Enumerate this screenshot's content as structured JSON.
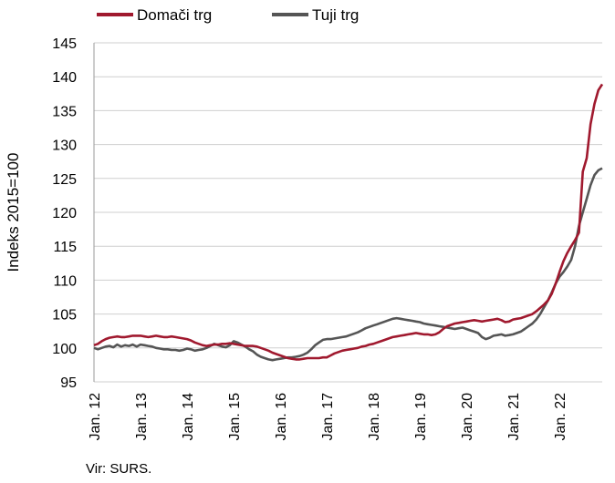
{
  "chart_data": {
    "type": "line",
    "title": "",
    "xlabel": "",
    "ylabel": "Indeks 2015=100",
    "ylim": [
      95,
      145
    ],
    "yticks": [
      95,
      100,
      105,
      110,
      115,
      120,
      125,
      130,
      135,
      140,
      145
    ],
    "x_tick_labels": [
      "Jan. 12",
      "Jan. 13",
      "Jan. 14",
      "Jan. 15",
      "Jan. 16",
      "Jan. 17",
      "Jan. 18",
      "Jan. 19",
      "Jan. 20",
      "Jan. 21",
      "Jan. 22"
    ],
    "x_range": [
      "2012-01",
      "2022-06"
    ],
    "grid": "horizontal",
    "legend": "top",
    "source": "Vir: SURS.",
    "series": [
      {
        "name": "Domači trg",
        "color": "#a0192e",
        "values": [
          100.4,
          100.6,
          101.0,
          101.3,
          101.5,
          101.6,
          101.7,
          101.6,
          101.6,
          101.7,
          101.8,
          101.8,
          101.8,
          101.7,
          101.6,
          101.7,
          101.8,
          101.7,
          101.6,
          101.6,
          101.7,
          101.6,
          101.5,
          101.4,
          101.3,
          101.1,
          100.8,
          100.6,
          100.4,
          100.3,
          100.4,
          100.5,
          100.5,
          100.6,
          100.6,
          100.7,
          100.6,
          100.5,
          100.4,
          100.3,
          100.3,
          100.3,
          100.2,
          100.0,
          99.8,
          99.6,
          99.3,
          99.1,
          98.9,
          98.7,
          98.5,
          98.4,
          98.3,
          98.3,
          98.4,
          98.5,
          98.5,
          98.5,
          98.5,
          98.6,
          98.6,
          98.9,
          99.2,
          99.4,
          99.6,
          99.7,
          99.8,
          99.9,
          100.0,
          100.2,
          100.3,
          100.5,
          100.6,
          100.8,
          101.0,
          101.2,
          101.4,
          101.6,
          101.7,
          101.8,
          101.9,
          102.0,
          102.1,
          102.2,
          102.1,
          102.0,
          102.0,
          101.9,
          102.0,
          102.3,
          102.8,
          103.2,
          103.4,
          103.6,
          103.7,
          103.8,
          103.9,
          104.0,
          104.1,
          104.0,
          103.9,
          104.0,
          104.1,
          104.2,
          104.3,
          104.1,
          103.8,
          103.9,
          104.2,
          104.3,
          104.4,
          104.6,
          104.8,
          105.0,
          105.4,
          105.9,
          106.4,
          107.0,
          108.0,
          109.5,
          111.2,
          112.8,
          114.0,
          115.0,
          115.9,
          117.0,
          126.0,
          128.0,
          133.0,
          136.0,
          138.0,
          138.9
        ]
      },
      {
        "name": "Tuji trg",
        "color": "#555555",
        "values": [
          100.0,
          99.8,
          100.0,
          100.2,
          100.3,
          100.1,
          100.5,
          100.2,
          100.4,
          100.3,
          100.5,
          100.2,
          100.5,
          100.4,
          100.3,
          100.2,
          100.0,
          99.9,
          99.8,
          99.8,
          99.7,
          99.7,
          99.6,
          99.7,
          99.9,
          99.8,
          99.6,
          99.7,
          99.8,
          100.0,
          100.3,
          100.6,
          100.4,
          100.2,
          100.1,
          100.4,
          101.0,
          100.8,
          100.5,
          100.2,
          99.8,
          99.5,
          99.0,
          98.7,
          98.5,
          98.3,
          98.2,
          98.3,
          98.4,
          98.5,
          98.6,
          98.6,
          98.7,
          98.8,
          99.0,
          99.3,
          99.8,
          100.4,
          100.8,
          101.2,
          101.3,
          101.3,
          101.4,
          101.5,
          101.6,
          101.7,
          101.9,
          102.1,
          102.3,
          102.6,
          102.9,
          103.1,
          103.3,
          103.5,
          103.7,
          103.9,
          104.1,
          104.3,
          104.4,
          104.3,
          104.2,
          104.1,
          104.0,
          103.9,
          103.8,
          103.6,
          103.5,
          103.4,
          103.3,
          103.2,
          103.1,
          103.0,
          102.9,
          102.8,
          102.9,
          103.0,
          102.8,
          102.6,
          102.4,
          102.2,
          101.6,
          101.3,
          101.5,
          101.8,
          101.9,
          102.0,
          101.8,
          101.9,
          102.0,
          102.2,
          102.4,
          102.8,
          103.2,
          103.6,
          104.2,
          105.0,
          106.0,
          107.0,
          108.2,
          109.5,
          110.5,
          111.2,
          112.0,
          113.0,
          115.0,
          118.0,
          120.0,
          122.0,
          124.0,
          125.5,
          126.2,
          126.5
        ]
      }
    ]
  }
}
